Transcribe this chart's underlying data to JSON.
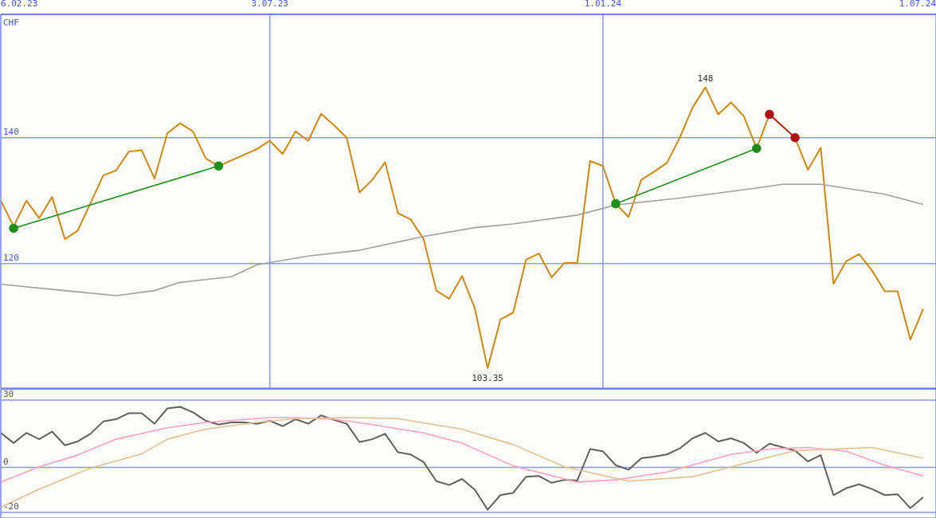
{
  "chart_data": [
    {
      "type": "line",
      "ylabel": "CHF",
      "xlim": [
        "2023-02-06",
        "2024-07-01"
      ],
      "xticks": [
        {
          "value": "2023-02-06",
          "label": "6.02.23"
        },
        {
          "value": "2023-07-03",
          "label": "3.07.23"
        },
        {
          "value": "2024-01-01",
          "label": "1.01.24"
        },
        {
          "value": "2024-07-01",
          "label": "1.07.24"
        }
      ],
      "ylim": [
        100.2,
        159.6
      ],
      "yticks": [
        120,
        140
      ],
      "grid": true,
      "marker": "none",
      "line_style": "solid",
      "x": [
        "2023-02-06",
        "2023-02-13",
        "2023-02-20",
        "2023-02-27",
        "2023-03-06",
        "2023-03-13",
        "2023-03-20",
        "2023-04-03",
        "2023-04-10",
        "2023-04-17",
        "2023-04-24",
        "2023-05-01",
        "2023-05-08",
        "2023-05-15",
        "2023-05-22",
        "2023-05-29",
        "2023-06-05",
        "2023-06-19",
        "2023-06-26",
        "2023-07-03",
        "2023-07-10",
        "2023-07-17",
        "2023-07-24",
        "2023-07-31",
        "2023-08-07",
        "2023-08-14",
        "2023-08-21",
        "2023-08-28",
        "2023-09-04",
        "2023-09-11",
        "2023-09-18",
        "2023-09-25",
        "2023-10-02",
        "2023-10-09",
        "2023-10-16",
        "2023-10-23",
        "2023-10-30",
        "2023-11-06",
        "2023-11-13",
        "2023-11-20",
        "2023-11-27",
        "2023-12-04",
        "2023-12-11",
        "2023-12-18",
        "2023-12-25",
        "2024-01-01",
        "2024-01-08",
        "2024-01-15",
        "2024-01-22",
        "2024-01-29",
        "2024-02-05",
        "2024-02-12",
        "2024-02-19",
        "2024-02-26",
        "2024-03-04",
        "2024-03-11",
        "2024-03-18",
        "2024-03-25",
        "2024-04-01",
        "2024-04-15",
        "2024-04-22",
        "2024-04-29",
        "2024-05-06",
        "2024-05-13",
        "2024-05-20",
        "2024-05-27",
        "2024-06-03",
        "2024-06-10",
        "2024-06-17",
        "2024-06-24"
      ],
      "series": [
        {
          "color": "#d4880f",
          "values": [
            130.0,
            125.9,
            130.0,
            127.2,
            130.6,
            123.9,
            125.2,
            134.0,
            134.8,
            137.8,
            138.0,
            133.5,
            140.7,
            142.3,
            141.0,
            136.7,
            135.5,
            137.3,
            138.2,
            139.5,
            137.4,
            141.0,
            139.5,
            143.8,
            142.0,
            140.0,
            131.3,
            133.3,
            136.1,
            128.0,
            127.0,
            123.9,
            115.7,
            114.4,
            118.0,
            112.9,
            103.35,
            111.1,
            112.2,
            120.6,
            121.6,
            117.8,
            120.1,
            120.1,
            136.3,
            135.5,
            129.5,
            127.4,
            133.3,
            134.6,
            136.0,
            140.0,
            144.8,
            148,
            143.7,
            145.6,
            143.4,
            138.3,
            143.7,
            140.0,
            134.9,
            138.4,
            116.8,
            120.4,
            121.5,
            118.9,
            115.6,
            115.6,
            107.9,
            112.8
          ]
        },
        {
          "color": "#a0a0a0",
          "x": [
            "2023-02-06",
            "2023-03-13",
            "2023-04-10",
            "2023-05-01",
            "2023-05-15",
            "2023-06-12",
            "2023-06-26",
            "2023-07-24",
            "2023-08-21",
            "2023-09-25",
            "2023-10-23",
            "2023-11-13",
            "2023-12-18",
            "2024-01-08",
            "2024-02-12",
            "2024-03-25",
            "2024-04-08",
            "2024-04-29",
            "2024-06-03",
            "2024-06-24"
          ],
          "values": [
            116.7,
            115.7,
            114.9,
            115.7,
            117.0,
            117.9,
            119.8,
            121.2,
            122.1,
            124.3,
            125.7,
            126.3,
            127.7,
            129.3,
            130.4,
            132.0,
            132.6,
            132.6,
            131.0,
            129.4
          ]
        },
        {
          "color": "#1a8f1a",
          "marker": "circle",
          "x": [
            "2023-02-13",
            "2023-06-05"
          ],
          "values": [
            125.6,
            135.5
          ]
        },
        {
          "color": "#1a8f1a",
          "marker": "circle",
          "x": [
            "2024-01-08",
            "2024-03-25"
          ],
          "values": [
            129.5,
            138.3
          ]
        },
        {
          "color": "#b01010",
          "marker": "circle",
          "x": [
            "2024-04-01",
            "2024-04-15"
          ],
          "values": [
            143.7,
            140.0
          ]
        }
      ],
      "annotations": [
        {
          "text": "148",
          "x": "2024-02-26",
          "y": 148
        },
        {
          "text": "103.35",
          "x": "2023-10-30",
          "y": 103.35
        }
      ]
    },
    {
      "type": "line",
      "xlim": [
        "2023-02-06",
        "2024-07-01"
      ],
      "xticks": [
        {
          "value": "2023-07-03",
          "label": null
        },
        {
          "value": "2024-01-01",
          "label": null
        }
      ],
      "ylim": [
        -22.5,
        35
      ],
      "yticks": [
        -20,
        0,
        30
      ],
      "grid": true,
      "marker": "none",
      "tick_labels": "y",
      "series": [
        {
          "color": "#606060",
          "x": [
            "2023-02-06",
            "2023-02-13",
            "2023-02-20",
            "2023-02-27",
            "2023-03-06",
            "2023-03-13",
            "2023-03-20",
            "2023-03-27",
            "2023-04-03",
            "2023-04-10",
            "2023-04-17",
            "2023-04-24",
            "2023-05-01",
            "2023-05-08",
            "2023-05-15",
            "2023-05-22",
            "2023-05-29",
            "2023-06-05",
            "2023-06-12",
            "2023-06-19",
            "2023-06-26",
            "2023-07-03",
            "2023-07-10",
            "2023-07-17",
            "2023-07-24",
            "2023-07-31",
            "2023-08-07",
            "2023-08-14",
            "2023-08-21",
            "2023-08-28",
            "2023-09-04",
            "2023-09-11",
            "2023-09-18",
            "2023-09-25",
            "2023-10-02",
            "2023-10-09",
            "2023-10-16",
            "2023-10-23",
            "2023-10-30",
            "2023-11-06",
            "2023-11-13",
            "2023-11-20",
            "2023-11-27",
            "2023-12-04",
            "2023-12-11",
            "2023-12-18",
            "2023-12-25",
            "2024-01-01",
            "2024-01-08",
            "2024-01-15",
            "2024-01-22",
            "2024-01-29",
            "2024-02-05",
            "2024-02-12",
            "2024-02-19",
            "2024-02-26",
            "2024-03-04",
            "2024-03-11",
            "2024-03-18",
            "2024-03-25",
            "2024-04-01",
            "2024-04-15",
            "2024-04-22",
            "2024-04-29",
            "2024-05-06",
            "2024-05-13",
            "2024-05-20",
            "2024-05-27",
            "2024-06-03",
            "2024-06-10",
            "2024-06-17",
            "2024-06-24"
          ],
          "values": [
            15.4,
            10.9,
            15.4,
            12.6,
            16.0,
            9.9,
            11.6,
            15.0,
            20.5,
            21.5,
            24.2,
            24.2,
            19.5,
            26.3,
            27.0,
            24.6,
            20.8,
            19.1,
            20.1,
            20.1,
            19.5,
            20.8,
            18.4,
            21.5,
            19.5,
            23.2,
            21.2,
            19.5,
            11.3,
            12.6,
            15.0,
            6.8,
            5.8,
            2.4,
            -6.1,
            -7.8,
            -5.1,
            -9.9,
            -18.8,
            -12.3,
            -11.3,
            -4.1,
            -3.8,
            -6.8,
            -5.5,
            -5.8,
            8.2,
            7.2,
            1.0,
            -1.0,
            4.1,
            4.8,
            5.8,
            8.5,
            13.0,
            15.4,
            11.6,
            13.0,
            10.9,
            6.5,
            10.6,
            7.5,
            2.7,
            5.5,
            -12.3,
            -9.2,
            -7.5,
            -9.6,
            -12.3,
            -11.9,
            -18.1,
            -13.3
          ]
        },
        {
          "color": "#ffa0c0",
          "x": [
            "2023-02-06",
            "2023-02-27",
            "2023-03-20",
            "2023-04-10",
            "2023-05-08",
            "2023-05-29",
            "2023-07-03",
            "2023-07-17",
            "2023-08-07",
            "2023-08-28",
            "2023-09-25",
            "2023-10-16",
            "2023-11-13",
            "2023-12-18",
            "2024-01-08",
            "2024-02-05",
            "2024-03-11",
            "2024-04-01",
            "2024-04-22",
            "2024-05-13",
            "2024-06-03",
            "2024-06-24"
          ],
          "values": [
            -6.5,
            0.3,
            5.5,
            12.6,
            17.7,
            20.1,
            22.2,
            22.2,
            21.5,
            19.1,
            15.4,
            10.9,
            0.7,
            -6.5,
            -5.5,
            -2.0,
            5.8,
            8.2,
            8.9,
            7.2,
            1.0,
            -3.8
          ]
        },
        {
          "color": "#e0c090",
          "x": [
            "2023-02-06",
            "2023-02-27",
            "2023-03-27",
            "2023-04-24",
            "2023-05-08",
            "2023-05-29",
            "2023-06-26",
            "2023-07-17",
            "2023-08-14",
            "2023-09-11",
            "2023-09-25",
            "2023-10-16",
            "2023-11-13",
            "2023-12-11",
            "2024-01-15",
            "2024-02-19",
            "2024-03-18",
            "2024-04-15",
            "2024-05-27",
            "2024-06-24"
          ],
          "values": [
            -17.7,
            -9.6,
            -0.3,
            6.1,
            12.6,
            17.1,
            20.1,
            21.8,
            22.2,
            21.8,
            19.8,
            17.1,
            10.2,
            0.3,
            -6.1,
            -4.1,
            1.7,
            7.5,
            8.9,
            4.1
          ]
        }
      ]
    }
  ]
}
